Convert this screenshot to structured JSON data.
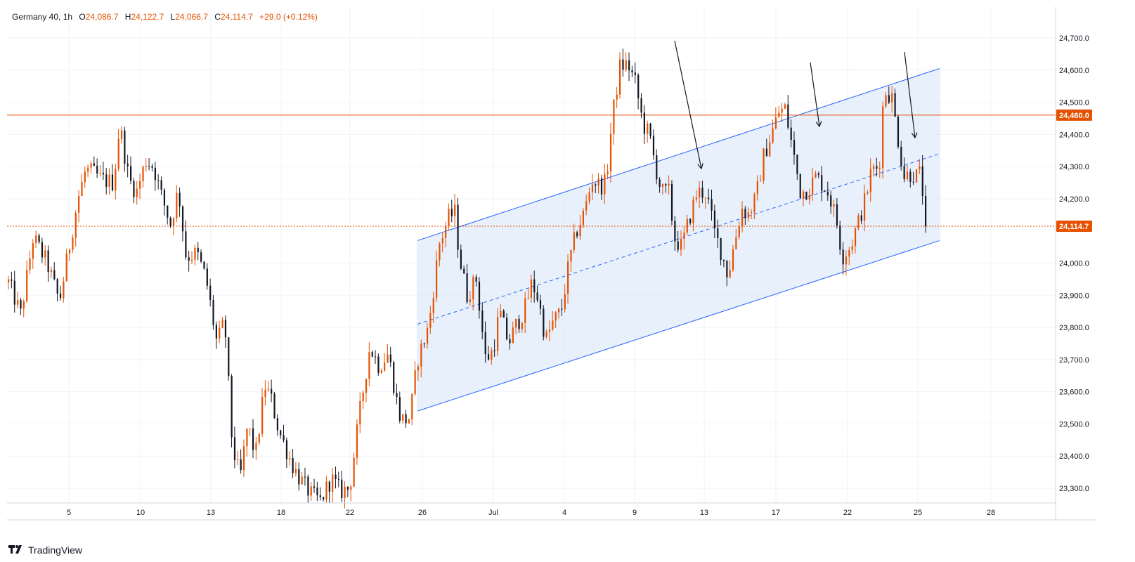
{
  "legend": {
    "symbol": "Germany 40, 1h",
    "open_label": "O",
    "open": "24,086.7",
    "high_label": "H",
    "high": "24,122.7",
    "low_label": "L",
    "low": "24,066.7",
    "close_label": "C",
    "close": "24,114.7",
    "change": "+29.0 (+0.12%)"
  },
  "brand": {
    "name": "TradingView",
    "logo_icon": "tradingview-logo-icon"
  },
  "colors": {
    "background": "#ffffff",
    "candle_up": "#e65100",
    "candle_down": "#131722",
    "resistance_line": "#e65100",
    "channel_line": "#2962ff",
    "channel_fill": "#dce8fb",
    "grid": "#f0f3fa",
    "axis_text": "#131722"
  },
  "chart_data": {
    "type": "candlestick",
    "instrument": "Germany 40",
    "timeframe": "1h",
    "y_axis": {
      "ticks": [
        "24,700.0",
        "24,600.0",
        "24,500.0",
        "24,400.0",
        "24,300.0",
        "24,200.0",
        "24,000.0",
        "23,900.0",
        "23,800.0",
        "23,700.0",
        "23,600.0",
        "23,500.0",
        "23,400.0",
        "23,300.0"
      ],
      "ylim": [
        23250,
        24790
      ]
    },
    "x_axis": {
      "tick_labels": [
        "5",
        "10",
        "13",
        "18",
        "22",
        "26",
        "Jul",
        "4",
        "9",
        "13",
        "17",
        "22",
        "25",
        "28"
      ]
    },
    "price_labels": [
      {
        "text": "24,460.0",
        "value": 24460,
        "style": "resistance"
      },
      {
        "text": "24,114.7",
        "value": 24114.7,
        "style": "last_price"
      }
    ],
    "horizontal_lines": [
      {
        "value": 24460,
        "style": "solid",
        "color": "#e65100"
      },
      {
        "value": 24114.7,
        "style": "dotted",
        "color": "#e65100"
      }
    ],
    "channel": {
      "start": "26",
      "end": "25",
      "upper": [
        24070,
        24605
      ],
      "middle": [
        23810,
        24340
      ],
      "lower": [
        23540,
        24070
      ]
    },
    "arrows": [
      {
        "from": [
          24695,
          "day 10 ~12h"
        ],
        "to": [
          24290,
          "day 12"
        ]
      },
      {
        "from": [
          24600,
          "day 18"
        ],
        "to": [
          24420,
          "day 19"
        ]
      },
      {
        "from": [
          24660,
          "day 24"
        ],
        "to": [
          24380,
          "day 25"
        ]
      }
    ],
    "path": [
      [
        0,
        23940
      ],
      [
        0.8,
        23840
      ],
      [
        1.6,
        24080
      ],
      [
        2.5,
        24000
      ],
      [
        3.3,
        23880
      ],
      [
        4.5,
        24200
      ],
      [
        5,
        24290
      ],
      [
        5.5,
        24280
      ],
      [
        6,
        24260
      ],
      [
        6.8,
        24250
      ],
      [
        7.2,
        24430
      ],
      [
        7.8,
        24260
      ],
      [
        8.3,
        24220
      ],
      [
        8.9,
        24320
      ],
      [
        9.4,
        24300
      ],
      [
        9.9,
        24210
      ],
      [
        10.5,
        24120
      ],
      [
        11,
        24230
      ],
      [
        11.5,
        24020
      ],
      [
        12.2,
        24030
      ],
      [
        12.8,
        23950
      ],
      [
        13.5,
        23750
      ],
      [
        14,
        23820
      ],
      [
        14.5,
        23430
      ],
      [
        15,
        23330
      ],
      [
        15.5,
        23500
      ],
      [
        16,
        23400
      ],
      [
        16.6,
        23620
      ],
      [
        17,
        23580
      ],
      [
        17.5,
        23480
      ],
      [
        18,
        23420
      ],
      [
        18.5,
        23360
      ],
      [
        19,
        23320
      ],
      [
        19.6,
        23280
      ],
      [
        20.2,
        23260
      ],
      [
        20.9,
        23330
      ],
      [
        21.5,
        23290
      ],
      [
        22.1,
        23300
      ],
      [
        22.7,
        23520
      ],
      [
        23.4,
        23740
      ],
      [
        24,
        23680
      ],
      [
        24.6,
        23720
      ],
      [
        25.3,
        23530
      ],
      [
        25.6,
        23510
      ],
      [
        26,
        23520
      ],
      [
        26.5,
        23700
      ],
      [
        27.2,
        23800
      ],
      [
        27.9,
        24060
      ],
      [
        28.5,
        24140
      ],
      [
        28.9,
        24160
      ],
      [
        29.2,
        24020
      ],
      [
        29.7,
        23900
      ],
      [
        30.3,
        23950
      ],
      [
        30.9,
        23700
      ],
      [
        31.4,
        23730
      ],
      [
        31.8,
        23850
      ],
      [
        32.4,
        23750
      ],
      [
        32.9,
        23810
      ],
      [
        33.4,
        23850
      ],
      [
        33.9,
        23940
      ],
      [
        34.3,
        23890
      ],
      [
        34.8,
        23760
      ],
      [
        35.3,
        23820
      ],
      [
        35.8,
        23850
      ],
      [
        36.3,
        24000
      ],
      [
        36.8,
        24100
      ],
      [
        37.3,
        24160
      ],
      [
        37.8,
        24260
      ],
      [
        38.3,
        24240
      ],
      [
        38.7,
        24250
      ],
      [
        39.1,
        24450
      ],
      [
        39.6,
        24610
      ],
      [
        40.1,
        24620
      ],
      [
        40.6,
        24560
      ],
      [
        41.1,
        24430
      ],
      [
        41.5,
        24400
      ],
      [
        41.9,
        24300
      ],
      [
        42.3,
        24220
      ],
      [
        42.8,
        24220
      ],
      [
        43.1,
        24080
      ],
      [
        43.6,
        24050
      ],
      [
        44.1,
        24140
      ],
      [
        44.6,
        24220
      ],
      [
        45.2,
        24220
      ],
      [
        45.7,
        24100
      ],
      [
        46.2,
        24030
      ],
      [
        46.6,
        23960
      ],
      [
        47,
        24060
      ],
      [
        47.5,
        24170
      ],
      [
        47.9,
        24150
      ],
      [
        48.4,
        24200
      ],
      [
        48.9,
        24330
      ],
      [
        49.4,
        24400
      ],
      [
        49.9,
        24470
      ],
      [
        50.3,
        24480
      ],
      [
        50.8,
        24350
      ],
      [
        51.3,
        24220
      ],
      [
        51.8,
        24230
      ],
      [
        52.3,
        24270
      ],
      [
        52.8,
        24240
      ],
      [
        53.1,
        24220
      ],
      [
        53.6,
        24140
      ],
      [
        54,
        24020
      ],
      [
        54.5,
        24050
      ],
      [
        55,
        24120
      ],
      [
        55.5,
        24200
      ],
      [
        55.9,
        24290
      ],
      [
        56.4,
        24300
      ],
      [
        56.7,
        24540
      ],
      [
        57.2,
        24520
      ],
      [
        57.6,
        24390
      ],
      [
        58,
        24270
      ],
      [
        58.5,
        24280
      ],
      [
        58.8,
        24270
      ],
      [
        59.1,
        24280
      ],
      [
        59.4,
        24114.7
      ]
    ]
  }
}
